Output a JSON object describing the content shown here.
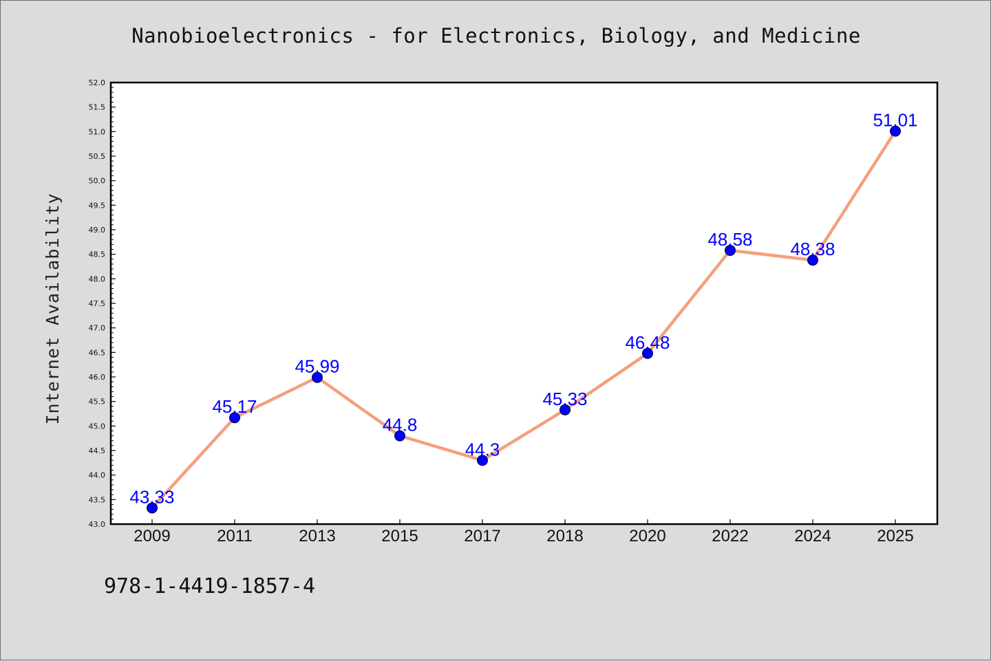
{
  "chart_data": {
    "type": "line",
    "title": "Nanobioelectronics - for Electronics, Biology, and Medicine",
    "xlabel": "",
    "ylabel": "Internet Availability",
    "categories": [
      "2009",
      "2011",
      "2013",
      "2015",
      "2017",
      "2018",
      "2020",
      "2022",
      "2024",
      "2025"
    ],
    "series": [
      {
        "values": [
          43.33,
          45.17,
          45.99,
          44.8,
          44.3,
          45.33,
          46.48,
          48.58,
          48.38,
          51.01
        ],
        "data_labels": [
          "43.33",
          "45.17",
          "45.99",
          "44.8",
          "44.3",
          "45.33",
          "46.48",
          "48.58",
          "48.38",
          "51.01"
        ],
        "line_color": "#f4a07d",
        "marker_color": "#0000ff",
        "label_color": "#0000ff"
      }
    ],
    "ylim": [
      43.0,
      52.0
    ],
    "yticks": [
      "43.0",
      "43.5",
      "44.0",
      "44.5",
      "45.0",
      "45.5",
      "46.0",
      "46.5",
      "47.0",
      "47.5",
      "48.0",
      "48.5",
      "49.0",
      "49.5",
      "50.0",
      "50.5",
      "51.0",
      "51.5",
      "52.0"
    ],
    "grid": false,
    "legend": "none"
  },
  "footer": {
    "text": "978-1-4419-1857-4"
  },
  "colors": {
    "background": "#dcdcdc",
    "plot_background": "#ffffff",
    "axes": "#000000"
  }
}
